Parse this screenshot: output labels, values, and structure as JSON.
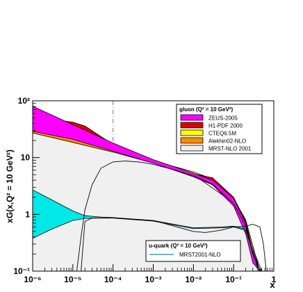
{
  "chart_data": {
    "type": "area",
    "x_scale": "log",
    "y_scale": "log",
    "xlim": [
      1e-06,
      1
    ],
    "ylim": [
      0.1,
      100
    ],
    "xlabel": "x",
    "ylabel": "xG(x,Q² = 10 GeV²)",
    "x_ticks": [
      "10⁻⁶",
      "10⁻⁵",
      "10⁻⁴",
      "10⁻³",
      "10⁻²",
      "10⁻¹",
      "1"
    ],
    "y_ticks": [
      "10⁻¹",
      "1",
      "10",
      "10²"
    ],
    "reference_line_x": 0.0001,
    "legend_gluon": {
      "title": "gluon (Q² = 10 GeV²)",
      "entries": [
        "ZEUS-2005",
        "H1-PDF 2000",
        "CTEQ6.5M",
        "Alekhin02-NLO",
        "MRST-NLO 2001"
      ]
    },
    "legend_quark": {
      "title": "u-quark (Q² = 10 GeV²)",
      "entries": [
        "MRST2001-NLO"
      ]
    },
    "series": [
      {
        "name": "MRST-NLO 2001",
        "kind": "band",
        "color": "#f0f0f0",
        "x": [
          1e-06,
          0.0001,
          0.001,
          0.01,
          0.1,
          0.2,
          0.3,
          0.5
        ],
        "upper": [
          30,
          14,
          8.5,
          5.0,
          1.6,
          0.75,
          0.25,
          0.1
        ],
        "lower": [
          0.1,
          0.1,
          0.1,
          0.1,
          0.1,
          0.1,
          0.1,
          0.1
        ]
      },
      {
        "name": "Alekhin02-NLO",
        "kind": "band",
        "color": "#ff8c00",
        "x": [
          1e-06,
          1e-05,
          0.0001,
          0.001,
          0.01,
          0.03,
          0.1,
          0.2,
          0.3,
          0.45
        ],
        "upper": [
          34,
          22,
          13.5,
          8.5,
          5.2,
          3.8,
          1.7,
          0.65,
          0.22,
          0.1
        ],
        "lower": [
          27,
          18.5,
          12.5,
          8.0,
          4.9,
          3.5,
          1.45,
          0.55,
          0.18,
          0.1
        ]
      },
      {
        "name": "CTEQ6.5M",
        "kind": "band",
        "color": "#ffff00",
        "x": [
          1e-06,
          1e-05,
          0.0001,
          0.001,
          0.01,
          0.03,
          0.1,
          0.2,
          0.3,
          0.45
        ],
        "upper": [
          47,
          27,
          15,
          8.8,
          5.6,
          4.2,
          1.9,
          0.8,
          0.28,
          0.1
        ],
        "lower": [
          37,
          23,
          13.5,
          8.3,
          5.1,
          3.8,
          1.65,
          0.65,
          0.22,
          0.1
        ]
      },
      {
        "name": "H1-PDF 2000",
        "kind": "band",
        "color": "#e00000",
        "x": [
          1e-06,
          1e-05,
          2e-05,
          0.0001,
          0.001,
          0.01,
          0.03,
          0.1,
          0.2,
          0.3,
          0.45
        ],
        "upper": [
          52,
          42,
          36,
          17,
          8.8,
          5.2,
          4.4,
          2.0,
          0.75,
          0.23,
          0.1
        ],
        "lower": [
          44,
          33,
          28,
          14,
          8.1,
          4.6,
          3.8,
          1.7,
          0.58,
          0.17,
          0.1
        ]
      },
      {
        "name": "ZEUS-2005",
        "kind": "band",
        "color": "#ff00ff",
        "x": [
          1e-06,
          1e-05,
          0.0001,
          0.001,
          0.01,
          0.03,
          0.1,
          0.2,
          0.3,
          0.45
        ],
        "upper": [
          80,
          38,
          18,
          9.2,
          5.3,
          4.0,
          1.9,
          0.7,
          0.2,
          0.1
        ],
        "lower": [
          29,
          21,
          13,
          8.0,
          4.6,
          3.3,
          1.4,
          0.45,
          0.14,
          0.1
        ]
      },
      {
        "name": "MRST-NLO 2001",
        "kind": "line",
        "color": "#000000",
        "x": [
          1.25e-05,
          1.6e-05,
          2e-05,
          3e-05,
          5e-05,
          0.0001,
          0.0002,
          0.0005,
          0.001,
          0.003,
          0.01,
          0.03,
          0.1,
          0.2,
          0.3
        ],
        "y": [
          0.1,
          0.4,
          1.2,
          3.3,
          6.5,
          8.4,
          8.7,
          8.3,
          7.6,
          6.2,
          4.8,
          3.4,
          1.55,
          0.62,
          0.2
        ]
      },
      {
        "name": "MRST2001-NLO",
        "kind": "band",
        "color": "#00e8e8",
        "x": [
          1e-06,
          3e-06,
          1e-05,
          2e-05,
          5e-05,
          0.0001,
          0.001,
          0.01,
          0.05,
          0.1,
          0.2,
          0.3,
          0.4,
          0.5
        ],
        "upper": [
          2.7,
          1.8,
          1.15,
          0.95,
          0.9,
          0.88,
          0.78,
          0.58,
          0.6,
          0.62,
          0.55,
          0.25,
          0.12,
          0.1
        ],
        "lower": [
          0.38,
          0.55,
          0.78,
          0.85,
          0.86,
          0.86,
          0.76,
          0.56,
          0.58,
          0.6,
          0.52,
          0.22,
          0.11,
          0.1
        ]
      },
      {
        "name": "MRST2001-NLO",
        "kind": "line",
        "color": "#000000",
        "x": [
          1.6e-05,
          2e-05,
          3e-05,
          0.0001,
          0.001,
          0.01,
          0.02,
          0.05,
          0.1,
          0.2,
          0.3,
          0.45,
          0.55,
          0.65
        ],
        "y": [
          0.1,
          0.75,
          0.86,
          0.87,
          0.78,
          0.5,
          0.48,
          0.53,
          0.6,
          0.62,
          0.67,
          0.6,
          0.3,
          0.1
        ]
      }
    ]
  }
}
